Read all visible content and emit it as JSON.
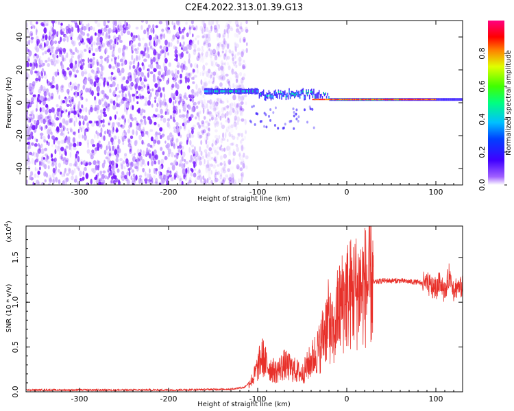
{
  "title": "C2E4.2022.313.01.39.G13",
  "charts": [
    {
      "type": "heatmap",
      "xlabel": "Height of straight line (km)",
      "ylabel": "Frequency (Hz)",
      "xlim": [
        -360,
        130
      ],
      "ylim": [
        -50,
        50
      ],
      "xticks": [
        "-300",
        "-200",
        "-100",
        "0",
        "100"
      ],
      "yticks": [
        "40",
        "20",
        "0",
        "-20",
        "-40"
      ],
      "colorbar": {
        "label": "Normalized spectral amplitude",
        "range": [
          0,
          1
        ],
        "ticks": [
          "0.0",
          "0.2",
          "0.4",
          "0.6",
          "0.8"
        ]
      },
      "features": {
        "noise_region_x": [
          -360,
          -112
        ],
        "signal_line_hz": 2,
        "signal_start_x": -160
      }
    },
    {
      "type": "line",
      "xlabel": "Height of straight line (km)",
      "ylabel": "SNR (10 * v/v)",
      "multiplier": "(x10",
      "multiplier_exp": "4",
      "xlim": [
        -360,
        130
      ],
      "ylim": [
        0,
        1.85
      ],
      "xticks": [
        "-300",
        "-200",
        "-100",
        "0",
        "100"
      ],
      "yticks": [
        "0.0",
        "0.5",
        "1.0",
        "1.5"
      ],
      "color": "#e8302a",
      "series": [
        {
          "x": [
            -360,
            -200,
            -130,
            -115,
            -105,
            -95,
            -90,
            -80,
            -70,
            -60,
            -50,
            -40,
            -30,
            -25,
            -20,
            -15,
            -10,
            -5,
            0,
            10,
            20,
            30,
            40,
            60,
            80,
            90,
            100,
            105,
            110,
            115,
            120,
            130
          ],
          "y": [
            0.02,
            0.02,
            0.03,
            0.05,
            0.15,
            0.4,
            0.3,
            0.22,
            0.3,
            0.25,
            0.2,
            0.35,
            0.5,
            0.7,
            0.8,
            0.6,
            0.9,
            1.0,
            1.08,
            1.12,
            1.18,
            1.22,
            1.24,
            1.24,
            1.22,
            1.2,
            1.15,
            1.25,
            1.1,
            1.3,
            1.15,
            1.17
          ]
        }
      ]
    }
  ]
}
